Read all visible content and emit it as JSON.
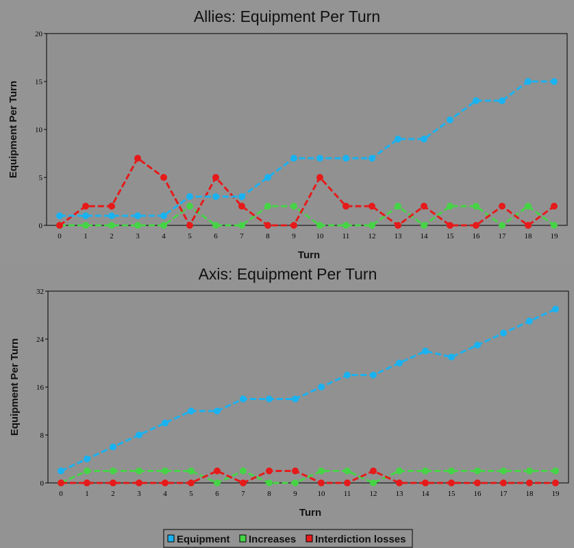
{
  "colors": {
    "equipment": "#1ab2f0",
    "increases": "#46d446",
    "interdiction_losses": "#e61a1a"
  },
  "chart_data": [
    {
      "type": "line",
      "title": "Allies: Equipment Per Turn",
      "xlabel": "Turn",
      "ylabel": "Equipment Per Turn",
      "ylim": [
        0,
        20
      ],
      "yticks": [
        "0",
        "5",
        "10",
        "15",
        "20"
      ],
      "ytick_values": [
        0,
        5,
        10,
        15,
        20
      ],
      "x": [
        0,
        1,
        2,
        3,
        4,
        5,
        6,
        7,
        8,
        9,
        10,
        11,
        12,
        13,
        14,
        15,
        16,
        17,
        18,
        19
      ],
      "xtick_labels": [
        "0",
        "1",
        "2",
        "3",
        "4",
        "5",
        "6",
        "7",
        "8",
        "9",
        "10",
        "11",
        "12",
        "13",
        "14",
        "15",
        "16",
        "17",
        "18",
        "19"
      ],
      "series": [
        {
          "name": "Increases",
          "color_key": "increases",
          "values": [
            0,
            0,
            0,
            0,
            0,
            2,
            0,
            0,
            2,
            2,
            0,
            0,
            0,
            2,
            0,
            2,
            2,
            0,
            2,
            0
          ]
        },
        {
          "name": "Interdiction losses",
          "color_key": "interdiction_losses",
          "values": [
            0,
            2,
            2,
            7,
            5,
            0,
            5,
            2,
            0,
            0,
            5,
            2,
            2,
            0,
            2,
            0,
            0,
            2,
            0,
            2
          ]
        },
        {
          "name": "Equipment",
          "color_key": "equipment",
          "values": [
            1,
            1,
            1,
            1,
            1,
            3,
            3,
            3,
            5,
            7,
            7,
            7,
            7,
            9,
            9,
            11,
            13,
            13,
            15,
            15
          ]
        }
      ]
    },
    {
      "type": "line",
      "title": "Axis: Equipment Per Turn",
      "xlabel": "Turn",
      "ylabel": "Equipment Per Turn",
      "ylim": [
        0,
        32
      ],
      "yticks": [
        "0",
        "8",
        "16",
        "24",
        "32"
      ],
      "ytick_values": [
        0,
        8,
        16,
        24,
        32
      ],
      "x": [
        0,
        1,
        2,
        3,
        4,
        5,
        6,
        7,
        8,
        9,
        10,
        11,
        12,
        13,
        14,
        15,
        16,
        17,
        18,
        19
      ],
      "xtick_labels": [
        "0",
        "1",
        "2",
        "3",
        "4",
        "5",
        "6",
        "7",
        "8",
        "9",
        "10",
        "11",
        "12",
        "13",
        "14",
        "15",
        "16",
        "17",
        "18",
        "19"
      ],
      "series": [
        {
          "name": "Increases",
          "color_key": "increases",
          "values": [
            0,
            2,
            2,
            2,
            2,
            2,
            0,
            2,
            0,
            0,
            2,
            2,
            0,
            2,
            2,
            2,
            2,
            2,
            2,
            2
          ]
        },
        {
          "name": "Interdiction losses",
          "color_key": "interdiction_losses",
          "values": [
            0,
            0,
            0,
            0,
            0,
            0,
            2,
            0,
            2,
            2,
            0,
            0,
            2,
            0,
            0,
            0,
            0,
            0,
            0,
            0
          ]
        },
        {
          "name": "Equipment",
          "color_key": "equipment",
          "values": [
            2,
            4,
            6,
            8,
            10,
            12,
            12,
            14,
            14,
            14,
            16,
            18,
            18,
            20,
            22,
            21,
            23,
            25,
            27,
            29
          ]
        }
      ]
    }
  ],
  "legend": {
    "items": [
      {
        "label": "Equipment",
        "color_key": "equipment"
      },
      {
        "label": "Increases",
        "color_key": "increases"
      },
      {
        "label": "Interdiction losses",
        "color_key": "interdiction_losses"
      }
    ]
  }
}
